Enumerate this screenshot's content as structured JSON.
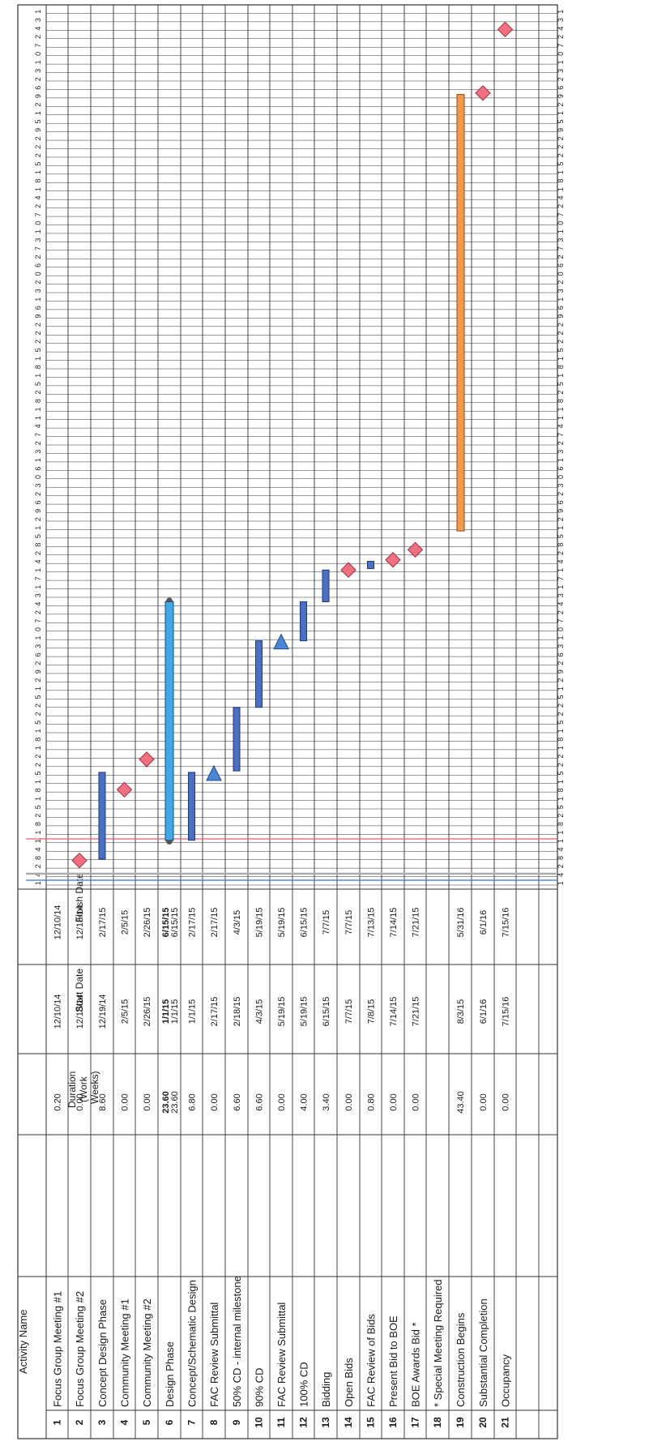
{
  "columns": {
    "activity_name": "Activity Name",
    "duration": [
      "Duration",
      "(Work",
      "Weeks)"
    ],
    "start_date": "Start Date",
    "finish_date": "Finish Date"
  },
  "timeline": {
    "start": "2014-12-01",
    "end": "2016-08-01",
    "ticks": [
      "1",
      "4",
      "2",
      "8",
      "4",
      "1",
      "1",
      "8",
      "2",
      "5",
      "1",
      "8",
      "1",
      "5",
      "2",
      "2",
      "1",
      "8",
      "1",
      "5",
      "2",
      "2",
      "5",
      "1",
      "2",
      "9",
      "2",
      "6",
      "3",
      "1",
      "0",
      "7",
      "2",
      "4",
      "3",
      "1",
      "7",
      "1",
      "4",
      "2",
      "8",
      "5",
      "1",
      "2",
      "9",
      "6",
      "2",
      "3",
      "0",
      "6",
      "1",
      "3",
      "2",
      "7",
      "4",
      "1",
      "1",
      "8",
      "2",
      "5",
      "1",
      "8",
      "1",
      "5",
      "2",
      "2",
      "2",
      "9",
      "6",
      "1",
      "3",
      "2",
      "0",
      "6",
      "2",
      "7",
      "3",
      "1",
      "0",
      "7",
      "2",
      "4",
      "1",
      "8",
      "1",
      "5",
      "2",
      "2",
      "2",
      "9",
      "5",
      "1",
      "2",
      "9",
      "6",
      "2",
      "3",
      "1",
      "0",
      "7",
      "2",
      "4",
      "3",
      "1"
    ]
  },
  "rows": [
    {
      "id": "1",
      "name": "Focus Group Meeting #1",
      "duration": "0.20",
      "start": "12/10/14",
      "finish": "12/10/14",
      "type": "none",
      "bar_start": "2014-12-10",
      "bar_end": "2014-12-11"
    },
    {
      "id": "2",
      "name": "Focus Group Meeting #2",
      "duration": "0.00",
      "start": "12/18/14",
      "finish": "12/18/14",
      "type": "milestone",
      "bar_start": "2014-12-18",
      "bar_end": "2014-12-18"
    },
    {
      "id": "3",
      "name": "Concept Design Phase",
      "duration": "8.60",
      "start": "12/19/14",
      "finish": "2/17/15",
      "type": "task",
      "bar_start": "2014-12-19",
      "bar_end": "2015-02-17"
    },
    {
      "id": "4",
      "name": "Community Meeting #1",
      "duration": "0.00",
      "start": "2/5/15",
      "finish": "2/5/15",
      "type": "milestone",
      "bar_start": "2015-02-05",
      "bar_end": "2015-02-05"
    },
    {
      "id": "5",
      "name": "Community Meeting #2",
      "duration": "0.00",
      "start": "2/26/15",
      "finish": "2/26/15",
      "type": "milestone",
      "bar_start": "2015-02-26",
      "bar_end": "2015-02-26"
    },
    {
      "id": "6",
      "name": "Design Phase",
      "duration": "23.60",
      "duration2": "23.60",
      "start": "1/1/15",
      "start2": "1/1/15",
      "finish": "6/15/15",
      "finish2": "6/15/15",
      "type": "summary",
      "bar_start": "2015-01-01",
      "bar_end": "2015-06-15"
    },
    {
      "id": "7",
      "name": "Concept/Schematic Design",
      "duration": "6.80",
      "start": "1/1/15",
      "finish": "2/17/15",
      "type": "task",
      "bar_start": "2015-01-01",
      "bar_end": "2015-02-17"
    },
    {
      "id": "8",
      "name": "FAC Review Submittal",
      "duration": "0.00",
      "start": "2/17/15",
      "finish": "2/17/15",
      "type": "triangle",
      "bar_start": "2015-02-17",
      "bar_end": "2015-02-17"
    },
    {
      "id": "9",
      "name": "50% CD - internal milestone",
      "duration": "6.60",
      "start": "2/18/15",
      "finish": "4/3/15",
      "type": "task",
      "bar_start": "2015-02-18",
      "bar_end": "2015-04-03"
    },
    {
      "id": "10",
      "name": "90% CD",
      "duration": "6.60",
      "start": "4/3/15",
      "finish": "5/19/15",
      "type": "task",
      "bar_start": "2015-04-03",
      "bar_end": "2015-05-19"
    },
    {
      "id": "11",
      "name": "FAC Review Submittal",
      "duration": "0.00",
      "start": "5/19/15",
      "finish": "5/19/15",
      "type": "triangle",
      "bar_start": "2015-05-19",
      "bar_end": "2015-05-19"
    },
    {
      "id": "12",
      "name": "100% CD",
      "duration": "4.00",
      "start": "5/19/15",
      "finish": "6/15/15",
      "type": "task",
      "bar_start": "2015-05-19",
      "bar_end": "2015-06-15"
    },
    {
      "id": "13",
      "name": "Bidding",
      "duration": "3.40",
      "start": "6/15/15",
      "finish": "7/7/15",
      "type": "task",
      "bar_start": "2015-06-15",
      "bar_end": "2015-07-07"
    },
    {
      "id": "14",
      "name": "Open Bids",
      "duration": "0.00",
      "start": "7/7/15",
      "finish": "7/7/15",
      "type": "milestone",
      "bar_start": "2015-07-07",
      "bar_end": "2015-07-07"
    },
    {
      "id": "15",
      "name": "FAC Review of Bids",
      "duration": "0.80",
      "start": "7/8/15",
      "finish": "7/13/15",
      "type": "task",
      "bar_start": "2015-07-08",
      "bar_end": "2015-07-13"
    },
    {
      "id": "16",
      "name": "Present Bid to BOE",
      "duration": "0.00",
      "start": "7/14/15",
      "finish": "7/14/15",
      "type": "milestone",
      "bar_start": "2015-07-14",
      "bar_end": "2015-07-14"
    },
    {
      "id": "17",
      "name": "BOE Awards Bid *",
      "duration": "0.00",
      "start": "7/21/15",
      "finish": "7/21/15",
      "type": "milestone",
      "bar_start": "2015-07-21",
      "bar_end": "2015-07-21"
    },
    {
      "id": "18",
      "name": "* Special Meeting Required",
      "duration": "",
      "start": "",
      "finish": "",
      "type": "none"
    },
    {
      "id": "19",
      "name": "Construction Begins",
      "duration": "43.40",
      "start": "8/3/15",
      "finish": "5/31/16",
      "type": "construction",
      "bar_start": "2015-08-03",
      "bar_end": "2016-05-31"
    },
    {
      "id": "20",
      "name": "Substantial Completion",
      "duration": "0.00",
      "start": "6/1/16",
      "finish": "6/1/16",
      "type": "milestone",
      "bar_start": "2016-06-01",
      "bar_end": "2016-06-01"
    },
    {
      "id": "21",
      "name": "Occupancy",
      "duration": "0.00",
      "start": "7/15/16",
      "finish": "7/15/16",
      "type": "milestone",
      "bar_start": "2016-07-15",
      "bar_end": "2016-07-15"
    }
  ],
  "colors": {
    "grid": "#333333",
    "task": "#4a6fc4",
    "summary": "#3fa8e6",
    "construction": "#f39a4a",
    "milestone": "#f07080",
    "triangle": "#4a86d8",
    "today_line": "#e85a70",
    "baseline": "#3a6fd8"
  }
}
